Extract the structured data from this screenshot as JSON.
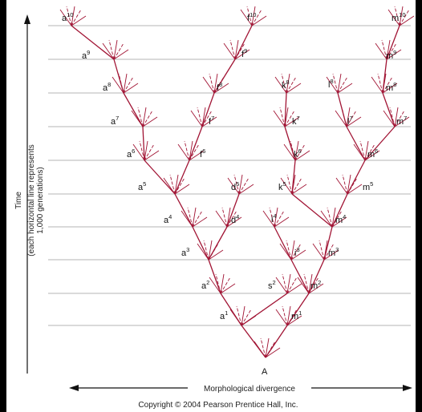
{
  "colors": {
    "background": "#ffffff",
    "frame": "#000000",
    "gridline": "#b5b5b5",
    "lineage": "#a11434",
    "axis": "#111111"
  },
  "axis": {
    "time_label": "Time",
    "time_sublabel_1": "(each horizontal line represents",
    "time_sublabel_2": "1,000 generations)",
    "divergence_label": "Morphological divergence"
  },
  "copyright": "Copyright © 2004 Pearson Prentice Hall, Inc.",
  "root_label": "A",
  "nodes": [
    {
      "id": "a1",
      "base": "a",
      "sup": "1"
    },
    {
      "id": "m1",
      "base": "m",
      "sup": "1"
    },
    {
      "id": "a2",
      "base": "a",
      "sup": "2"
    },
    {
      "id": "s2",
      "base": "s",
      "sup": "2"
    },
    {
      "id": "m2",
      "base": "m",
      "sup": "2"
    },
    {
      "id": "a3",
      "base": "a",
      "sup": "3"
    },
    {
      "id": "i3",
      "base": "i",
      "sup": "3"
    },
    {
      "id": "m3",
      "base": "m",
      "sup": "3"
    },
    {
      "id": "a4",
      "base": "a",
      "sup": "4"
    },
    {
      "id": "d4",
      "base": "d",
      "sup": "4"
    },
    {
      "id": "i4",
      "base": "i",
      "sup": "4"
    },
    {
      "id": "m4",
      "base": "m",
      "sup": "4"
    },
    {
      "id": "a5",
      "base": "a",
      "sup": "5"
    },
    {
      "id": "d5",
      "base": "d",
      "sup": "5"
    },
    {
      "id": "k5",
      "base": "k",
      "sup": "5"
    },
    {
      "id": "m5",
      "base": "m",
      "sup": "5"
    },
    {
      "id": "a6",
      "base": "a",
      "sup": "6"
    },
    {
      "id": "f6",
      "base": "f",
      "sup": "6"
    },
    {
      "id": "k6",
      "base": "k",
      "sup": "6"
    },
    {
      "id": "m6",
      "base": "m",
      "sup": "6"
    },
    {
      "id": "a7",
      "base": "a",
      "sup": "7"
    },
    {
      "id": "f7",
      "base": "f",
      "sup": "7"
    },
    {
      "id": "k7",
      "base": "k",
      "sup": "7"
    },
    {
      "id": "l7",
      "base": "l",
      "sup": "7"
    },
    {
      "id": "m7",
      "base": "m",
      "sup": "7"
    },
    {
      "id": "a8",
      "base": "a",
      "sup": "8"
    },
    {
      "id": "f8",
      "base": "f",
      "sup": "8"
    },
    {
      "id": "k8",
      "base": "k",
      "sup": "8"
    },
    {
      "id": "l8",
      "base": "l",
      "sup": "8"
    },
    {
      "id": "m8",
      "base": "m",
      "sup": "8"
    },
    {
      "id": "a9",
      "base": "a",
      "sup": "9"
    },
    {
      "id": "f9",
      "base": "f",
      "sup": "9"
    },
    {
      "id": "m9",
      "base": "m",
      "sup": "9"
    },
    {
      "id": "a10",
      "base": "a",
      "sup": "10"
    },
    {
      "id": "f10",
      "base": "f",
      "sup": "10"
    },
    {
      "id": "m10",
      "base": "m",
      "sup": "10"
    }
  ],
  "edges": [
    [
      "A",
      "a1"
    ],
    [
      "A",
      "m1"
    ],
    [
      "a1",
      "a2"
    ],
    [
      "a1",
      "s2"
    ],
    [
      "m1",
      "m2"
    ],
    [
      "a2",
      "a3"
    ],
    [
      "m2",
      "i3"
    ],
    [
      "m2",
      "m3"
    ],
    [
      "a3",
      "a4"
    ],
    [
      "a3",
      "d4"
    ],
    [
      "i3",
      "i4"
    ],
    [
      "m3",
      "m4"
    ],
    [
      "a4",
      "a5"
    ],
    [
      "d4",
      "d5"
    ],
    [
      "m4",
      "k5"
    ],
    [
      "m4",
      "m5"
    ],
    [
      "a5",
      "a6"
    ],
    [
      "a5",
      "f6"
    ],
    [
      "k5",
      "k6"
    ],
    [
      "m5",
      "m6"
    ],
    [
      "a6",
      "a7"
    ],
    [
      "f6",
      "f7"
    ],
    [
      "k6",
      "k7"
    ],
    [
      "m6",
      "l7"
    ],
    [
      "m6",
      "m7"
    ],
    [
      "a7",
      "a8"
    ],
    [
      "f7",
      "f8"
    ],
    [
      "k7",
      "k8"
    ],
    [
      "l7",
      "l8"
    ],
    [
      "m7",
      "m8"
    ],
    [
      "a8",
      "a9"
    ],
    [
      "f8",
      "f9"
    ],
    [
      "m8",
      "m9"
    ],
    [
      "a9",
      "a10"
    ],
    [
      "f9",
      "f10"
    ],
    [
      "m9",
      "m10"
    ]
  ]
}
